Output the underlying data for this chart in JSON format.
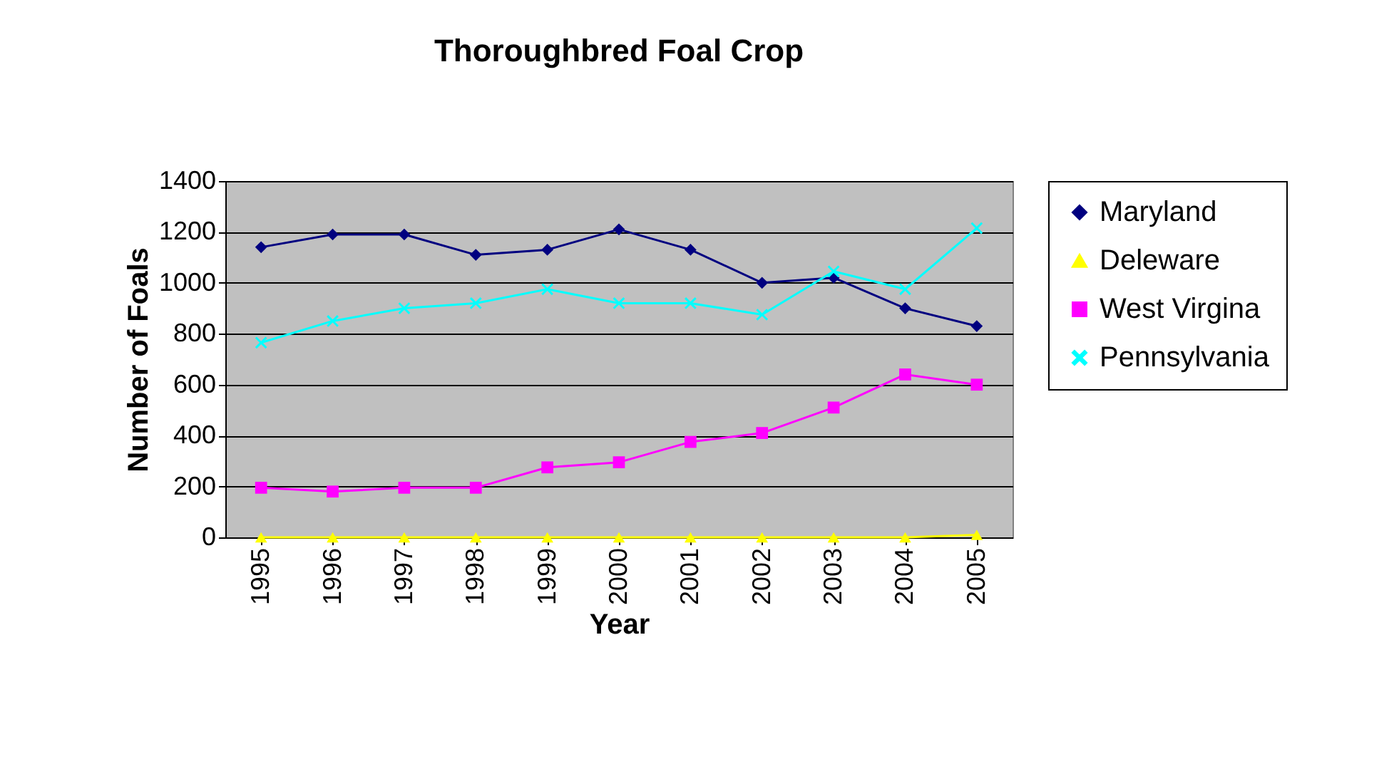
{
  "chart_data": {
    "type": "line",
    "title": "Thoroughbred Foal Crop",
    "xlabel": "Year",
    "ylabel": "Number of Foals",
    "categories": [
      "1995",
      "1996",
      "1997",
      "1998",
      "1999",
      "2000",
      "2001",
      "2002",
      "2003",
      "2004",
      "2005"
    ],
    "series": [
      {
        "name": "Maryland",
        "color": "#000080",
        "marker": "diamond",
        "values": [
          1140,
          1190,
          1190,
          1110,
          1130,
          1210,
          1130,
          1000,
          1020,
          900,
          830
        ]
      },
      {
        "name": "Deleware",
        "color": "#ffff00",
        "marker": "triangle",
        "values": [
          0,
          0,
          0,
          0,
          0,
          0,
          0,
          0,
          0,
          0,
          10
        ]
      },
      {
        "name": "West Virgina",
        "color": "#ff00ff",
        "marker": "square",
        "values": [
          195,
          180,
          195,
          195,
          275,
          295,
          375,
          410,
          510,
          640,
          600
        ]
      },
      {
        "name": "Pennsylvania",
        "color": "#00ffff",
        "marker": "cross",
        "values": [
          765,
          850,
          900,
          920,
          975,
          920,
          920,
          875,
          1045,
          975,
          1215
        ]
      }
    ],
    "ylim": [
      0,
      1400
    ],
    "yticks": [
      0,
      200,
      400,
      600,
      800,
      1000,
      1200,
      1400
    ],
    "grid": "y",
    "legend": "right",
    "line_style": "solid"
  }
}
